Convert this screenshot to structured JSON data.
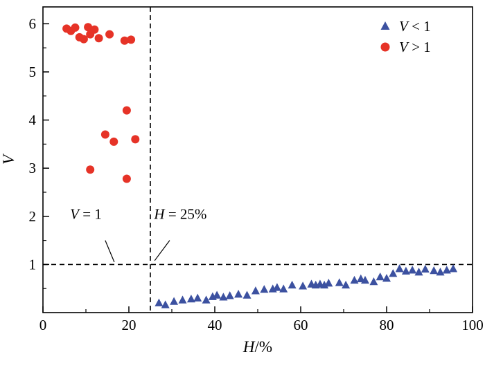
{
  "figure": {
    "background": "#ffffff",
    "axis_color": "#000000"
  },
  "chart_data": {
    "type": "scatter",
    "title": "",
    "xlabel": "H/%",
    "ylabel": "V",
    "xlim": [
      0,
      100
    ],
    "ylim": [
      0,
      6.35
    ],
    "x_major_ticks": [
      0,
      20,
      40,
      60,
      80,
      100
    ],
    "x_minor_step": 10,
    "y_major_ticks": [
      1,
      2,
      3,
      4,
      5,
      6
    ],
    "y_minor_step": 0.5,
    "grid": false,
    "legend_position": "top-right",
    "reference_lines": [
      {
        "axis": "x",
        "value": 25,
        "style": "dashed",
        "color": "#000000"
      },
      {
        "axis": "y",
        "value": 1,
        "style": "dashed",
        "color": "#000000"
      }
    ],
    "annotations": [
      {
        "text": "V = 1",
        "x": 10,
        "y": 1.95,
        "leader": [
          [
            14.5,
            1.5
          ],
          [
            16.6,
            1.05
          ]
        ]
      },
      {
        "text": "H = 25%",
        "x": 32,
        "y": 1.95,
        "leader": [
          [
            29.5,
            1.5
          ],
          [
            26.0,
            1.08
          ]
        ]
      }
    ],
    "series": [
      {
        "name": "V < 1",
        "marker": "triangle",
        "color": "#3c51a0",
        "points": [
          [
            27,
            0.2
          ],
          [
            28.5,
            0.16
          ],
          [
            30.5,
            0.23
          ],
          [
            32.5,
            0.26
          ],
          [
            34.5,
            0.28
          ],
          [
            36,
            0.3
          ],
          [
            38,
            0.26
          ],
          [
            39.5,
            0.33
          ],
          [
            40.5,
            0.36
          ],
          [
            42,
            0.32
          ],
          [
            43.5,
            0.35
          ],
          [
            45.5,
            0.38
          ],
          [
            47.5,
            0.36
          ],
          [
            49.5,
            0.45
          ],
          [
            51.5,
            0.48
          ],
          [
            53.5,
            0.49
          ],
          [
            54.5,
            0.52
          ],
          [
            56,
            0.49
          ],
          [
            58,
            0.57
          ],
          [
            60.5,
            0.55
          ],
          [
            62.5,
            0.59
          ],
          [
            63.5,
            0.57
          ],
          [
            64.5,
            0.59
          ],
          [
            65.5,
            0.57
          ],
          [
            66.5,
            0.61
          ],
          [
            69,
            0.62
          ],
          [
            70.5,
            0.57
          ],
          [
            72.5,
            0.67
          ],
          [
            74,
            0.7
          ],
          [
            75,
            0.67
          ],
          [
            77,
            0.64
          ],
          [
            78.5,
            0.74
          ],
          [
            80,
            0.71
          ],
          [
            81.5,
            0.81
          ],
          [
            83,
            0.91
          ],
          [
            84.5,
            0.86
          ],
          [
            86,
            0.88
          ],
          [
            87.5,
            0.84
          ],
          [
            89,
            0.9
          ],
          [
            91,
            0.87
          ],
          [
            92.5,
            0.84
          ],
          [
            94,
            0.88
          ],
          [
            95.5,
            0.91
          ]
        ]
      },
      {
        "name": "V > 1",
        "marker": "circle",
        "color": "#e63327",
        "points": [
          [
            5.5,
            5.9
          ],
          [
            6.5,
            5.85
          ],
          [
            7.5,
            5.92
          ],
          [
            8.5,
            5.72
          ],
          [
            9.5,
            5.68
          ],
          [
            10.5,
            5.93
          ],
          [
            11,
            5.78
          ],
          [
            12,
            5.88
          ],
          [
            13,
            5.7
          ],
          [
            15.5,
            5.78
          ],
          [
            19,
            5.65
          ],
          [
            20.5,
            5.67
          ],
          [
            11,
            2.97
          ],
          [
            14.5,
            3.7
          ],
          [
            16.5,
            3.55
          ],
          [
            19.5,
            4.2
          ],
          [
            19.5,
            2.78
          ],
          [
            21.5,
            3.6
          ]
        ]
      }
    ]
  }
}
